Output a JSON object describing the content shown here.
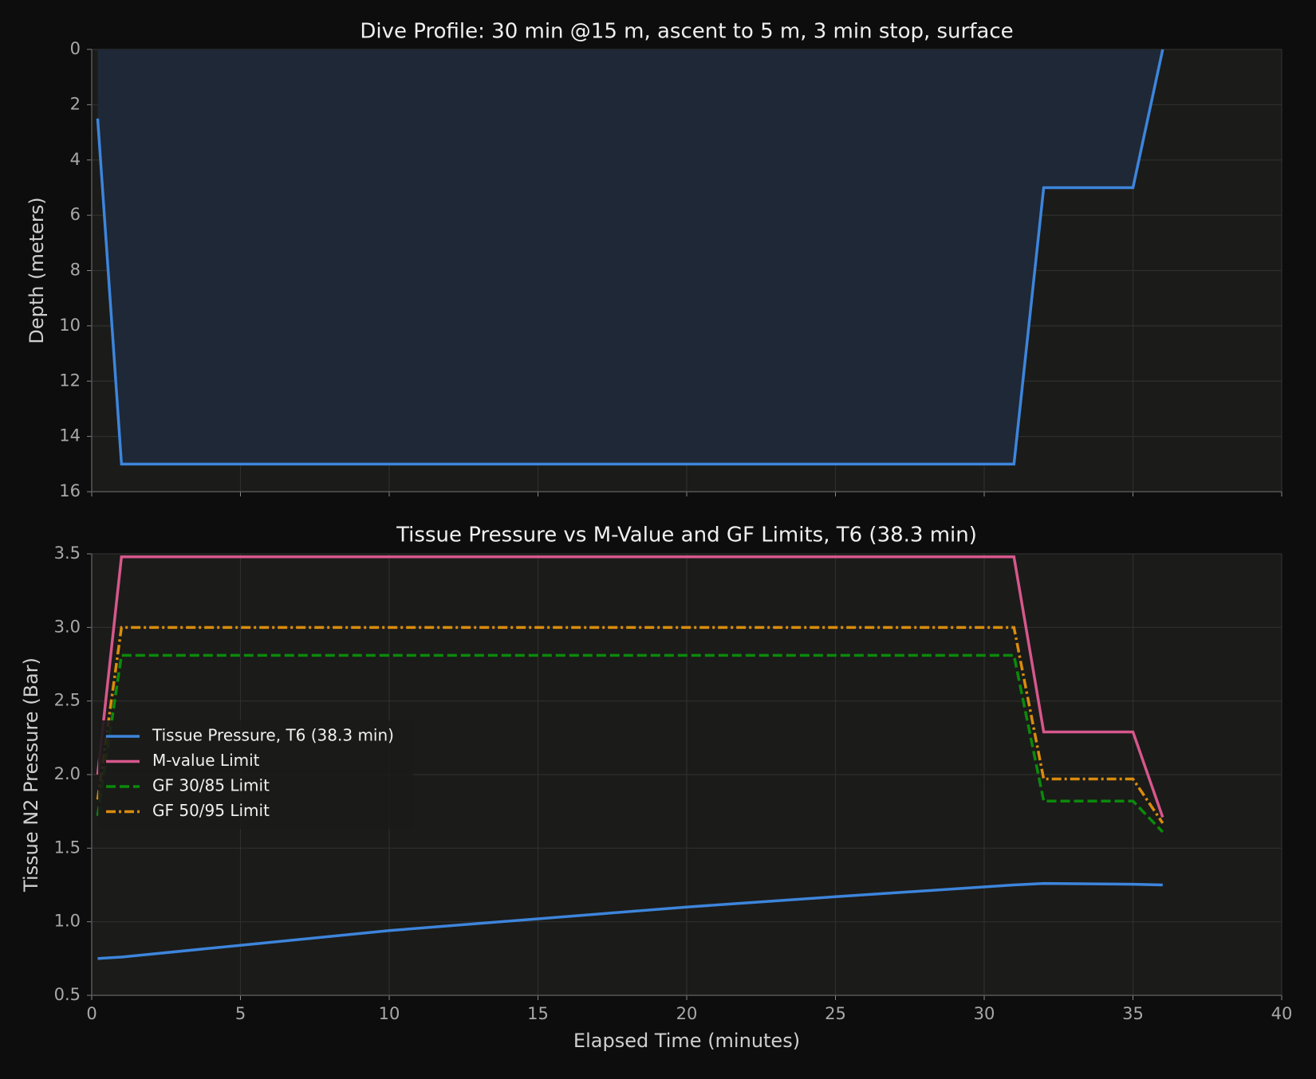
{
  "chart_data": [
    {
      "type": "area",
      "title": "Dive Profile: 30 min @15 m, ascent to 5 m, 3 min stop, surface",
      "y_label": "Depth (meters)",
      "x": [
        0.2,
        1,
        31,
        32,
        35,
        36
      ],
      "values": [
        2.5,
        15,
        15,
        5,
        5,
        0
      ],
      "color": "#3d85dc",
      "fill_color": "#1e2836",
      "xlim": [
        0,
        40
      ],
      "xticks": [
        0,
        5,
        10,
        15,
        20,
        25,
        30,
        35,
        40
      ],
      "ylim": [
        0,
        16
      ],
      "yticks": [
        0,
        2,
        4,
        6,
        8,
        10,
        12,
        14,
        16
      ],
      "invert_y": true,
      "grid": true
    },
    {
      "type": "line",
      "title": "Tissue Pressure vs M-Value and GF Limits, T6 (38.3 min)",
      "x_label": "Elapsed Time (minutes)",
      "y_label": "Tissue N2 Pressure (Bar)",
      "x": [
        0.2,
        1,
        5,
        10,
        15,
        20,
        25,
        31,
        32,
        35,
        36
      ],
      "series": [
        {
          "name": "Tissue Pressure, T6 (38.3 min)",
          "color": "#3d85dc",
          "dash": "solid",
          "values": [
            0.75,
            0.76,
            0.84,
            0.94,
            1.02,
            1.1,
            1.17,
            1.25,
            1.26,
            1.255,
            1.25
          ]
        },
        {
          "name": "M-value Limit",
          "color": "#d6578b",
          "dash": "solid",
          "values": [
            2.0,
            3.48,
            3.48,
            3.48,
            3.48,
            3.48,
            3.48,
            3.48,
            2.29,
            2.29,
            1.71
          ]
        },
        {
          "name": "GF 30/85 Limit",
          "color": "#0b8a0b",
          "dash": "dashed",
          "values": [
            1.72,
            2.81,
            2.81,
            2.81,
            2.81,
            2.81,
            2.81,
            2.81,
            1.82,
            1.82,
            1.61
          ]
        },
        {
          "name": "GF 50/95 Limit",
          "color": "#d98c0c",
          "dash": "dashdot",
          "values": [
            1.83,
            3.0,
            3.0,
            3.0,
            3.0,
            3.0,
            3.0,
            3.0,
            1.97,
            1.97,
            1.67
          ]
        }
      ],
      "xlim": [
        0,
        40
      ],
      "xticks": [
        0,
        5,
        10,
        15,
        20,
        25,
        30,
        35,
        40
      ],
      "ylim": [
        0.5,
        3.5
      ],
      "yticks": [
        0.5,
        {
          "value": 1,
          "label": "1.0"
        },
        1.5,
        {
          "value": 2,
          "label": "2.0"
        },
        2.5,
        {
          "value": 3,
          "label": "3.0"
        },
        3.5
      ],
      "grid": true,
      "legend": "center left"
    }
  ]
}
